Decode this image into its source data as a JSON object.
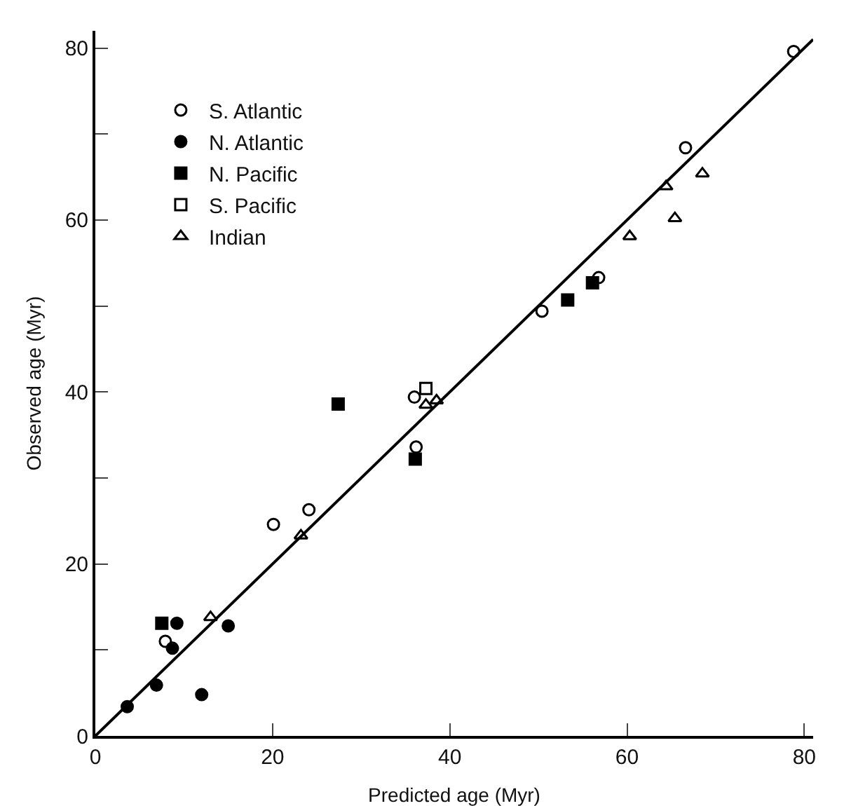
{
  "chart_data": {
    "type": "scatter",
    "xlabel": "Predicted age (Myr)",
    "ylabel": "Observed age (Myr)",
    "xlim": [
      0,
      81
    ],
    "ylim": [
      0,
      82
    ],
    "xticks": [
      0,
      20,
      40,
      60,
      80
    ],
    "yticks": [
      0,
      {
        "value": 10,
        "label": null
      },
      20,
      {
        "value": 30,
        "label": null
      },
      40,
      {
        "value": 50,
        "label": null
      },
      60,
      {
        "value": 70,
        "label": null
      },
      80
    ],
    "grid": false,
    "legend": "top left",
    "series": [
      {
        "name": "S. Atlantic",
        "color": "#000000",
        "marker": "circle-open",
        "x": [
          7.9,
          20.1,
          24.1,
          36.0,
          36.2,
          50.4,
          56.8,
          66.6,
          78.8
        ],
        "values": [
          11.0,
          24.6,
          26.3,
          39.4,
          33.6,
          49.4,
          53.3,
          68.4,
          79.6
        ]
      },
      {
        "name": "N. Atlantic",
        "color": "#000000",
        "marker": "circle",
        "x": [
          9.2,
          8.7,
          15.0,
          6.9,
          3.6,
          12.0
        ],
        "values": [
          13.1,
          10.2,
          12.8,
          5.9,
          3.4,
          4.8
        ]
      },
      {
        "name": "N. Pacific",
        "color": "#000000",
        "marker": "square",
        "x": [
          7.5,
          27.4,
          36.1,
          53.3,
          56.1
        ],
        "values": [
          13.1,
          38.6,
          32.2,
          50.7,
          52.7
        ]
      },
      {
        "name": "S. Pacific",
        "color": "#000000",
        "marker": "square-open",
        "x": [
          37.3
        ],
        "values": [
          40.4
        ]
      },
      {
        "name": "Indian",
        "color": "#000000",
        "marker": "triangle-open",
        "x": [
          13.0,
          23.2,
          37.3,
          38.5,
          60.3,
          64.4,
          65.4,
          68.5
        ],
        "values": [
          13.8,
          23.3,
          38.5,
          39.0,
          58.1,
          63.9,
          60.2,
          65.4
        ]
      },
      {
        "type": "line",
        "color": "#000000",
        "line_style": "solid",
        "x": [
          0,
          81
        ],
        "values": [
          0,
          81
        ]
      }
    ]
  }
}
